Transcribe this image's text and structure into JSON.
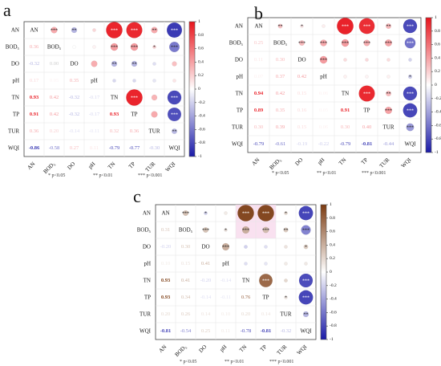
{
  "variables": [
    "AN",
    "BOD₅",
    "DO",
    "pH",
    "TN",
    "TP",
    "TUR",
    "WQI"
  ],
  "colorbar_ticks": [
    "1",
    "0.8",
    "0.6",
    "0.4",
    "0.2",
    "0",
    "-0.2",
    "-0.4",
    "-0.6",
    "-0.8",
    "-1"
  ],
  "significance_legend": [
    "* p<0.05",
    "** p<0.01",
    "*** p<0.001"
  ],
  "chart_data": [
    {
      "panel": "a",
      "type": "heatmap",
      "palette": {
        "high": "#e8141c",
        "mid": "#ffffff",
        "low": "#1a1aa8"
      },
      "labels": [
        "AN",
        "BOD₅",
        "DO",
        "pH",
        "TN",
        "TP",
        "TUR",
        "WQI"
      ],
      "lower_values": [
        [
          null,
          null,
          null,
          null,
          null,
          null,
          null,
          null
        ],
        [
          0.36,
          null,
          null,
          null,
          null,
          null,
          null,
          null
        ],
        [
          -0.32,
          0.0,
          null,
          null,
          null,
          null,
          null,
          null
        ],
        [
          0.17,
          0.05,
          0.35,
          null,
          null,
          null,
          null,
          null
        ],
        [
          0.93,
          0.42,
          -0.32,
          -0.17,
          null,
          null,
          null,
          null
        ],
        [
          0.91,
          0.42,
          -0.32,
          -0.17,
          0.93,
          null,
          null,
          null
        ],
        [
          0.36,
          0.2,
          -0.14,
          -0.11,
          0.32,
          0.36,
          null,
          null
        ],
        [
          -0.86,
          -0.58,
          0.27,
          0.11,
          -0.79,
          -0.77,
          -0.3,
          null
        ]
      ],
      "upper_stars": [
        [
          null,
          "***",
          "**",
          "",
          "***",
          "***",
          "**",
          "***"
        ],
        [
          null,
          null,
          "",
          "",
          "***",
          "***",
          "*",
          "***"
        ],
        [
          null,
          null,
          null,
          "",
          "**",
          "**",
          "",
          ""
        ],
        [
          null,
          null,
          null,
          null,
          "",
          "",
          "",
          ""
        ],
        [
          null,
          null,
          null,
          null,
          null,
          "***",
          "",
          "***"
        ],
        [
          null,
          null,
          null,
          null,
          null,
          null,
          "",
          "***"
        ],
        [
          null,
          null,
          null,
          null,
          null,
          null,
          null,
          "**"
        ],
        [
          null,
          null,
          null,
          null,
          null,
          null,
          null,
          null
        ]
      ]
    },
    {
      "panel": "b",
      "type": "heatmap",
      "palette": {
        "high": "#e8141c",
        "mid": "#ffffff",
        "low": "#1a1aa8"
      },
      "labels": [
        "AN",
        "BOD₅",
        "DO",
        "pH",
        "TN",
        "TP",
        "TUR",
        "WQI"
      ],
      "lower_values": [
        [
          null,
          null,
          null,
          null,
          null,
          null,
          null,
          null
        ],
        [
          0.25,
          null,
          null,
          null,
          null,
          null,
          null,
          null
        ],
        [
          0.11,
          0.3,
          null,
          null,
          null,
          null,
          null,
          null
        ],
        [
          0.07,
          0.37,
          0.42,
          null,
          null,
          null,
          null,
          null
        ],
        [
          0.94,
          0.42,
          0.15,
          0.06,
          null,
          null,
          null,
          null
        ],
        [
          0.89,
          0.35,
          0.16,
          0.05,
          0.91,
          null,
          null,
          null
        ],
        [
          0.3,
          0.39,
          0.15,
          0.06,
          0.3,
          0.4,
          null,
          null
        ],
        [
          -0.79,
          -0.61,
          -0.19,
          -0.22,
          -0.79,
          -0.81,
          -0.44,
          null
        ]
      ],
      "upper_stars": [
        [
          null,
          "**",
          "*",
          "",
          "***",
          "***",
          "**",
          "***"
        ],
        [
          null,
          null,
          "***",
          "***",
          "***",
          "***",
          "***",
          "***"
        ],
        [
          null,
          null,
          null,
          "***",
          "",
          "",
          "",
          ""
        ],
        [
          null,
          null,
          null,
          null,
          "",
          "",
          "",
          "*"
        ],
        [
          null,
          null,
          null,
          null,
          null,
          "***",
          "**",
          "***"
        ],
        [
          null,
          null,
          null,
          null,
          null,
          null,
          "***",
          "***"
        ],
        [
          null,
          null,
          null,
          null,
          null,
          null,
          null,
          "***"
        ],
        [
          null,
          null,
          null,
          null,
          null,
          null,
          null,
          null
        ]
      ]
    },
    {
      "panel": "c",
      "type": "heatmap",
      "palette": {
        "high": "#7b3a10",
        "mid": "#ffffff",
        "low": "#1a1aa8"
      },
      "labels": [
        "AN",
        "BOD₅",
        "DO",
        "pH",
        "TN",
        "TP",
        "TUR",
        "WQI"
      ],
      "lower_values": [
        [
          null,
          null,
          null,
          null,
          null,
          null,
          null,
          null
        ],
        [
          0.31,
          null,
          null,
          null,
          null,
          null,
          null,
          null
        ],
        [
          -0.2,
          0.3,
          null,
          null,
          null,
          null,
          null,
          null
        ],
        [
          0.1,
          0.15,
          0.41,
          null,
          null,
          null,
          null,
          null
        ],
        [
          0.93,
          0.41,
          -0.2,
          -0.14,
          null,
          null,
          null,
          null
        ],
        [
          0.93,
          0.34,
          -0.14,
          -0.11,
          0.76,
          null,
          null,
          null
        ],
        [
          0.2,
          0.26,
          0.14,
          0.1,
          0.2,
          0.14,
          null,
          null
        ],
        [
          -0.81,
          -0.54,
          0.25,
          0.11,
          -0.78,
          -0.81,
          -0.32,
          null
        ]
      ],
      "upper_stars": [
        [
          null,
          "***",
          "*",
          "",
          "***",
          "***",
          "*",
          "***"
        ],
        [
          null,
          null,
          "***",
          "*",
          "***",
          "***",
          "**",
          "***"
        ],
        [
          null,
          null,
          null,
          "***",
          "",
          "",
          "",
          "*"
        ],
        [
          null,
          null,
          null,
          null,
          "",
          "",
          "",
          ""
        ],
        [
          null,
          null,
          null,
          null,
          null,
          "***",
          "",
          "***"
        ],
        [
          null,
          null,
          null,
          null,
          null,
          null,
          "*",
          "***"
        ],
        [
          null,
          null,
          null,
          null,
          null,
          null,
          null,
          "**"
        ],
        [
          null,
          null,
          null,
          null,
          null,
          null,
          null,
          null
        ]
      ]
    }
  ]
}
